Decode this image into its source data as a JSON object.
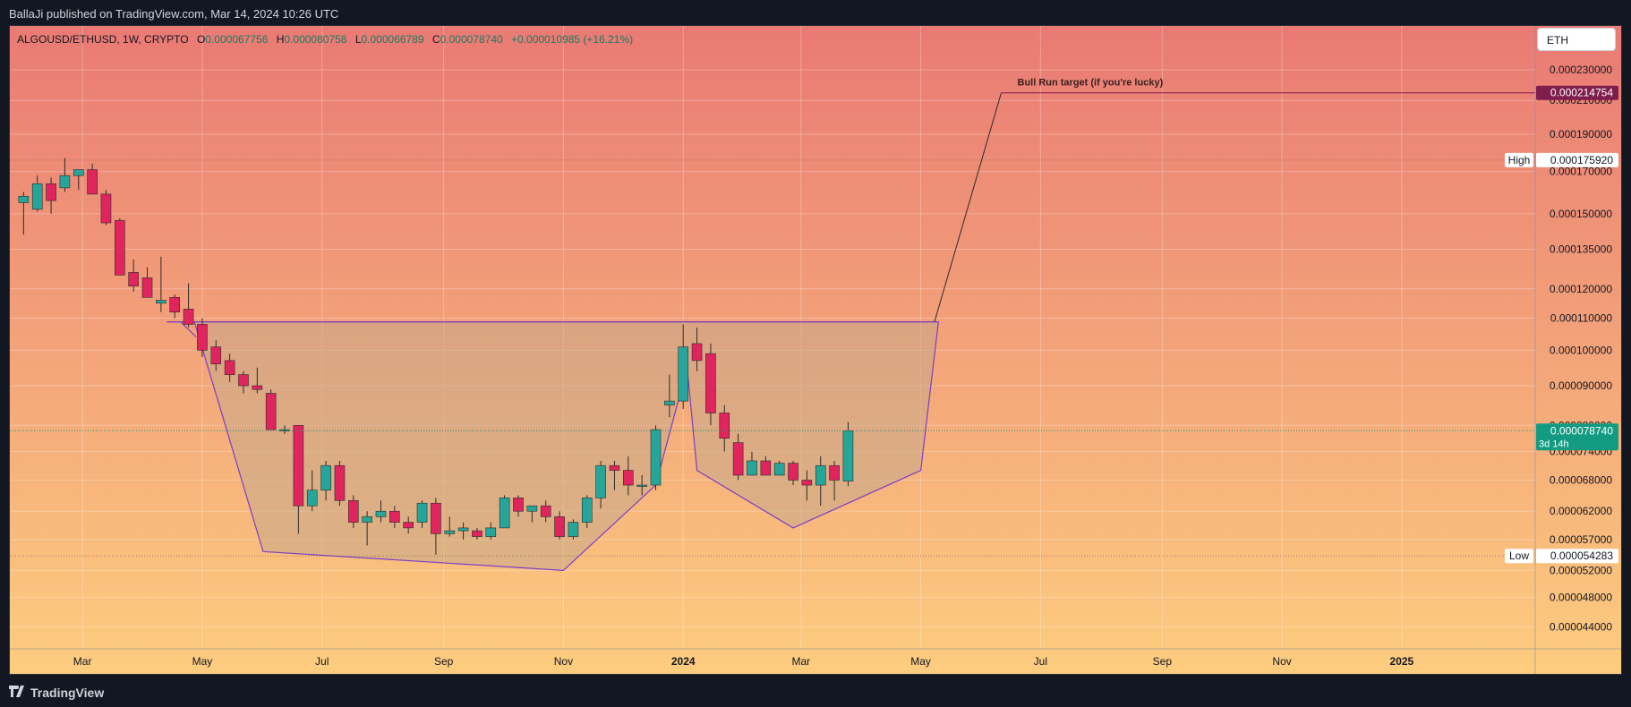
{
  "header": {
    "publisher_text": "BallaJi published on TradingView.com, Mar 14, 2024 10:26 UTC"
  },
  "footer": {
    "brand": "TradingView"
  },
  "legend": {
    "symbol": "ALGOUSD/ETHUSD, 1W, CRYPTO",
    "o_label": "O",
    "o_value": "0.000067756",
    "h_label": "H",
    "h_value": "0.000080758",
    "l_label": "L",
    "l_value": "0.000066789",
    "c_label": "C",
    "c_value": "0.000078740",
    "change": "+0.000010985 (+16.21%)"
  },
  "currency_button": "ETH",
  "colors": {
    "up": "#26a69a",
    "down": "#e0245e",
    "pattern": "#7b3fc4",
    "bg_top": "#e97a74",
    "bg_bottom": "#fdcd7f",
    "target": "#7f1d4c",
    "last_price": "#139b82"
  },
  "chart_data": {
    "type": "candlestick",
    "timeframe": "1W",
    "y_scale": "log",
    "y_range": [
      4.12e-05,
      0.000262
    ],
    "x_range": [
      "2023-01-23",
      "2025-03-10"
    ],
    "y_ticks": [
      "0.000230000",
      "0.000210000",
      "0.000190000",
      "0.000170000",
      "0.000150000",
      "0.000135000",
      "0.000120000",
      "0.000110000",
      "0.000100000",
      "0.000090000",
      "0.000080000",
      "0.000074000",
      "0.000068000",
      "0.000062000",
      "0.000057000",
      "0.000052000",
      "0.000048000",
      "0.000044000"
    ],
    "x_ticks": [
      {
        "label": "Mar",
        "date": "2023-03-01",
        "bold": false
      },
      {
        "label": "May",
        "date": "2023-05-01",
        "bold": false
      },
      {
        "label": "Jul",
        "date": "2023-07-01",
        "bold": false
      },
      {
        "label": "Sep",
        "date": "2023-09-01",
        "bold": false
      },
      {
        "label": "Nov",
        "date": "2023-11-01",
        "bold": false
      },
      {
        "label": "2024",
        "date": "2024-01-01",
        "bold": true
      },
      {
        "label": "Mar",
        "date": "2024-03-01",
        "bold": false
      },
      {
        "label": "May",
        "date": "2024-05-01",
        "bold": false
      },
      {
        "label": "Jul",
        "date": "2024-07-01",
        "bold": false
      },
      {
        "label": "Sep",
        "date": "2024-09-01",
        "bold": false
      },
      {
        "label": "Nov",
        "date": "2024-11-01",
        "bold": false
      },
      {
        "label": "2025",
        "date": "2025-01-01",
        "bold": true
      }
    ],
    "candles": [
      {
        "t": "2023-01-30",
        "o": 0.000155,
        "h": 0.00016,
        "l": 0.000141,
        "c": 0.000158
      },
      {
        "t": "2023-02-06",
        "o": 0.000152,
        "h": 0.000168,
        "l": 0.000151,
        "c": 0.000164
      },
      {
        "t": "2023-02-13",
        "o": 0.000164,
        "h": 0.000167,
        "l": 0.00015,
        "c": 0.000156
      },
      {
        "t": "2023-02-20",
        "o": 0.000162,
        "h": 0.000177,
        "l": 0.00016,
        "c": 0.000168
      },
      {
        "t": "2023-02-27",
        "o": 0.000168,
        "h": 0.00017,
        "l": 0.000161,
        "c": 0.000171
      },
      {
        "t": "2023-03-06",
        "o": 0.000171,
        "h": 0.000174,
        "l": 0.00016,
        "c": 0.000159
      },
      {
        "t": "2023-03-13",
        "o": 0.000159,
        "h": 0.000161,
        "l": 0.000145,
        "c": 0.000146
      },
      {
        "t": "2023-03-20",
        "o": 0.000147,
        "h": 0.000148,
        "l": 0.000125,
        "c": 0.000125
      },
      {
        "t": "2023-03-27",
        "o": 0.000126,
        "h": 0.000131,
        "l": 0.000119,
        "c": 0.000121
      },
      {
        "t": "2023-04-03",
        "o": 0.000124,
        "h": 0.000128,
        "l": 0.000117,
        "c": 0.000117
      },
      {
        "t": "2023-04-10",
        "o": 0.000115,
        "h": 0.000132,
        "l": 0.000112,
        "c": 0.000116
      },
      {
        "t": "2023-04-17",
        "o": 0.000117,
        "h": 0.000118,
        "l": 0.00011,
        "c": 0.000112
      },
      {
        "t": "2023-04-24",
        "o": 0.000113,
        "h": 0.000122,
        "l": 0.000107,
        "c": 0.000108
      },
      {
        "t": "2023-05-01",
        "o": 0.000108,
        "h": 0.00011,
        "l": 9.8e-05,
        "c": 0.0001
      },
      {
        "t": "2023-05-08",
        "o": 0.000101,
        "h": 0.000103,
        "l": 9.4e-05,
        "c": 9.6e-05
      },
      {
        "t": "2023-05-15",
        "o": 9.7e-05,
        "h": 9.9e-05,
        "l": 9.1e-05,
        "c": 9.3e-05
      },
      {
        "t": "2023-05-22",
        "o": 9.3e-05,
        "h": 9.4e-05,
        "l": 8.8e-05,
        "c": 9e-05
      },
      {
        "t": "2023-05-29",
        "o": 9e-05,
        "h": 9.5e-05,
        "l": 8.8e-05,
        "c": 8.9e-05
      },
      {
        "t": "2023-06-05",
        "o": 8.8e-05,
        "h": 8.9e-05,
        "l": 7.9e-05,
        "c": 7.9e-05
      },
      {
        "t": "2023-06-12",
        "o": 7.9e-05,
        "h": 8e-05,
        "l": 7.8e-05,
        "c": 7.9e-05
      },
      {
        "t": "2023-06-19",
        "o": 8e-05,
        "h": 8e-05,
        "l": 5.8e-05,
        "c": 6.3e-05
      },
      {
        "t": "2023-06-26",
        "o": 6.3e-05,
        "h": 7e-05,
        "l": 6.2e-05,
        "c": 6.6e-05
      },
      {
        "t": "2023-07-03",
        "o": 6.6e-05,
        "h": 7.2e-05,
        "l": 6.4e-05,
        "c": 7.1e-05
      },
      {
        "t": "2023-07-10",
        "o": 7.1e-05,
        "h": 7.2e-05,
        "l": 6.3e-05,
        "c": 6.4e-05
      },
      {
        "t": "2023-07-17",
        "o": 6.4e-05,
        "h": 6.5e-05,
        "l": 5.9e-05,
        "c": 6e-05
      },
      {
        "t": "2023-07-24",
        "o": 6e-05,
        "h": 6.2e-05,
        "l": 5.6e-05,
        "c": 6.1e-05
      },
      {
        "t": "2023-07-31",
        "o": 6.1e-05,
        "h": 6.4e-05,
        "l": 6e-05,
        "c": 6.2e-05
      },
      {
        "t": "2023-08-07",
        "o": 6.2e-05,
        "h": 6.3e-05,
        "l": 5.9e-05,
        "c": 6e-05
      },
      {
        "t": "2023-08-14",
        "o": 6e-05,
        "h": 6.1e-05,
        "l": 5.8e-05,
        "c": 5.9e-05
      },
      {
        "t": "2023-08-21",
        "o": 6e-05,
        "h": 6.4e-05,
        "l": 5.9e-05,
        "c": 6.35e-05
      },
      {
        "t": "2023-08-28",
        "o": 6.35e-05,
        "h": 6.45e-05,
        "l": 5.45e-05,
        "c": 5.8e-05
      },
      {
        "t": "2023-09-04",
        "o": 5.8e-05,
        "h": 6.1e-05,
        "l": 5.75e-05,
        "c": 5.85e-05
      },
      {
        "t": "2023-09-11",
        "o": 5.85e-05,
        "h": 6e-05,
        "l": 5.7e-05,
        "c": 5.9e-05
      },
      {
        "t": "2023-09-18",
        "o": 5.85e-05,
        "h": 5.9e-05,
        "l": 5.7e-05,
        "c": 5.75e-05
      },
      {
        "t": "2023-09-25",
        "o": 5.75e-05,
        "h": 6e-05,
        "l": 5.7e-05,
        "c": 5.9e-05
      },
      {
        "t": "2023-10-02",
        "o": 5.9e-05,
        "h": 6.5e-05,
        "l": 5.9e-05,
        "c": 6.45e-05
      },
      {
        "t": "2023-10-09",
        "o": 6.45e-05,
        "h": 6.5e-05,
        "l": 6.1e-05,
        "c": 6.2e-05
      },
      {
        "t": "2023-10-16",
        "o": 6.2e-05,
        "h": 6.3e-05,
        "l": 6e-05,
        "c": 6.3e-05
      },
      {
        "t": "2023-10-23",
        "o": 6.3e-05,
        "h": 6.4e-05,
        "l": 6e-05,
        "c": 6.1e-05
      },
      {
        "t": "2023-10-30",
        "o": 6.1e-05,
        "h": 6.2e-05,
        "l": 5.7e-05,
        "c": 5.75e-05
      },
      {
        "t": "2023-11-06",
        "o": 5.75e-05,
        "h": 6.05e-05,
        "l": 5.7e-05,
        "c": 6e-05
      },
      {
        "t": "2023-11-13",
        "o": 6e-05,
        "h": 6.5e-05,
        "l": 5.9e-05,
        "c": 6.45e-05
      },
      {
        "t": "2023-11-20",
        "o": 6.45e-05,
        "h": 7.2e-05,
        "l": 6.25e-05,
        "c": 7.1e-05
      },
      {
        "t": "2023-11-27",
        "o": 7.1e-05,
        "h": 7.2e-05,
        "l": 6.6e-05,
        "c": 7e-05
      },
      {
        "t": "2023-12-04",
        "o": 7e-05,
        "h": 7.3e-05,
        "l": 6.5e-05,
        "c": 6.7e-05
      },
      {
        "t": "2023-12-11",
        "o": 6.7e-05,
        "h": 6.9e-05,
        "l": 6.5e-05,
        "c": 6.7e-05
      },
      {
        "t": "2023-12-18",
        "o": 6.7e-05,
        "h": 8e-05,
        "l": 6.6e-05,
        "c": 7.9e-05
      },
      {
        "t": "2023-12-25",
        "o": 8.5e-05,
        "h": 9.3e-05,
        "l": 8.2e-05,
        "c": 8.6e-05
      },
      {
        "t": "2024-01-01",
        "o": 8.6e-05,
        "h": 0.000108,
        "l": 8.4e-05,
        "c": 0.000101
      },
      {
        "t": "2024-01-08",
        "o": 0.000102,
        "h": 0.000107,
        "l": 9.4e-05,
        "c": 9.7e-05
      },
      {
        "t": "2024-01-15",
        "o": 9.9e-05,
        "h": 0.000102,
        "l": 8e-05,
        "c": 8.3e-05
      },
      {
        "t": "2024-01-22",
        "o": 8.3e-05,
        "h": 8.5e-05,
        "l": 7.4e-05,
        "c": 7.7e-05
      },
      {
        "t": "2024-01-29",
        "o": 7.6e-05,
        "h": 7.8e-05,
        "l": 6.8e-05,
        "c": 6.9e-05
      },
      {
        "t": "2024-02-05",
        "o": 6.9e-05,
        "h": 7.4e-05,
        "l": 6.9e-05,
        "c": 7.2e-05
      },
      {
        "t": "2024-02-12",
        "o": 7.2e-05,
        "h": 7.3e-05,
        "l": 6.9e-05,
        "c": 6.9e-05
      },
      {
        "t": "2024-02-19",
        "o": 6.9e-05,
        "h": 7.2e-05,
        "l": 6.9e-05,
        "c": 7.15e-05
      },
      {
        "t": "2024-02-26",
        "o": 7.15e-05,
        "h": 7.2e-05,
        "l": 6.7e-05,
        "c": 6.8e-05
      },
      {
        "t": "2024-03-04",
        "o": 6.8e-05,
        "h": 7e-05,
        "l": 6.4e-05,
        "c": 6.7e-05
      },
      {
        "t": "2024-03-11",
        "o": 6.7e-05,
        "h": 7.3e-05,
        "l": 6.3e-05,
        "c": 7.1e-05
      },
      {
        "t": "2024-03-18",
        "o": 7.1e-05,
        "h": 7.2e-05,
        "l": 6.4e-05,
        "c": 6.8e-05
      },
      {
        "t": "2024-03-25",
        "o": 6.78e-05,
        "h": 8.08e-05,
        "l": 6.68e-05,
        "c": 7.87e-05
      }
    ],
    "pattern_polygon": [
      {
        "t": "2023-04-13",
        "p": 0.0001088
      },
      {
        "t": "2023-04-27",
        "p": 0.0001088
      },
      {
        "t": "2023-06-01",
        "p": 5.5e-05
      },
      {
        "t": "2023-11-01",
        "p": 5.2e-05
      },
      {
        "t": "2023-12-18",
        "p": 6.7e-05
      },
      {
        "t": "2024-01-03",
        "p": 9.5e-05
      },
      {
        "t": "2024-01-08",
        "p": 7e-05
      },
      {
        "t": "2024-02-26",
        "p": 5.9e-05
      },
      {
        "t": "2024-05-01",
        "p": 7e-05
      },
      {
        "t": "2024-05-10",
        "p": 0.0001088
      }
    ],
    "pattern_top_line": {
      "t1": "2023-04-13",
      "t2": "2024-05-10",
      "p": 0.0001088
    },
    "pattern_tick": [
      {
        "t": "2023-04-20",
        "p": 0.0001088
      },
      {
        "t": "2023-04-28",
        "p": 0.000104
      }
    ],
    "target_projection": [
      {
        "t": "2024-05-08",
        "p": 0.0001088
      },
      {
        "t": "2024-06-11",
        "p": 0.0002148
      }
    ],
    "target_line": {
      "t1": "2024-06-11",
      "t2": "2025-03-10",
      "p": 0.0002148
    },
    "target_annotation": "Bull Run target (if you're lucky)",
    "target_price_label": "0.000214754",
    "high_marker": {
      "label": "High",
      "value": "0.000175920",
      "p": 0.00017592
    },
    "low_marker": {
      "label": "Low",
      "value": "0.000054283",
      "p": 5.4283e-05
    },
    "last_price": {
      "value": "0.000078740",
      "p": 7.874e-05,
      "countdown": "3d 14h"
    }
  }
}
